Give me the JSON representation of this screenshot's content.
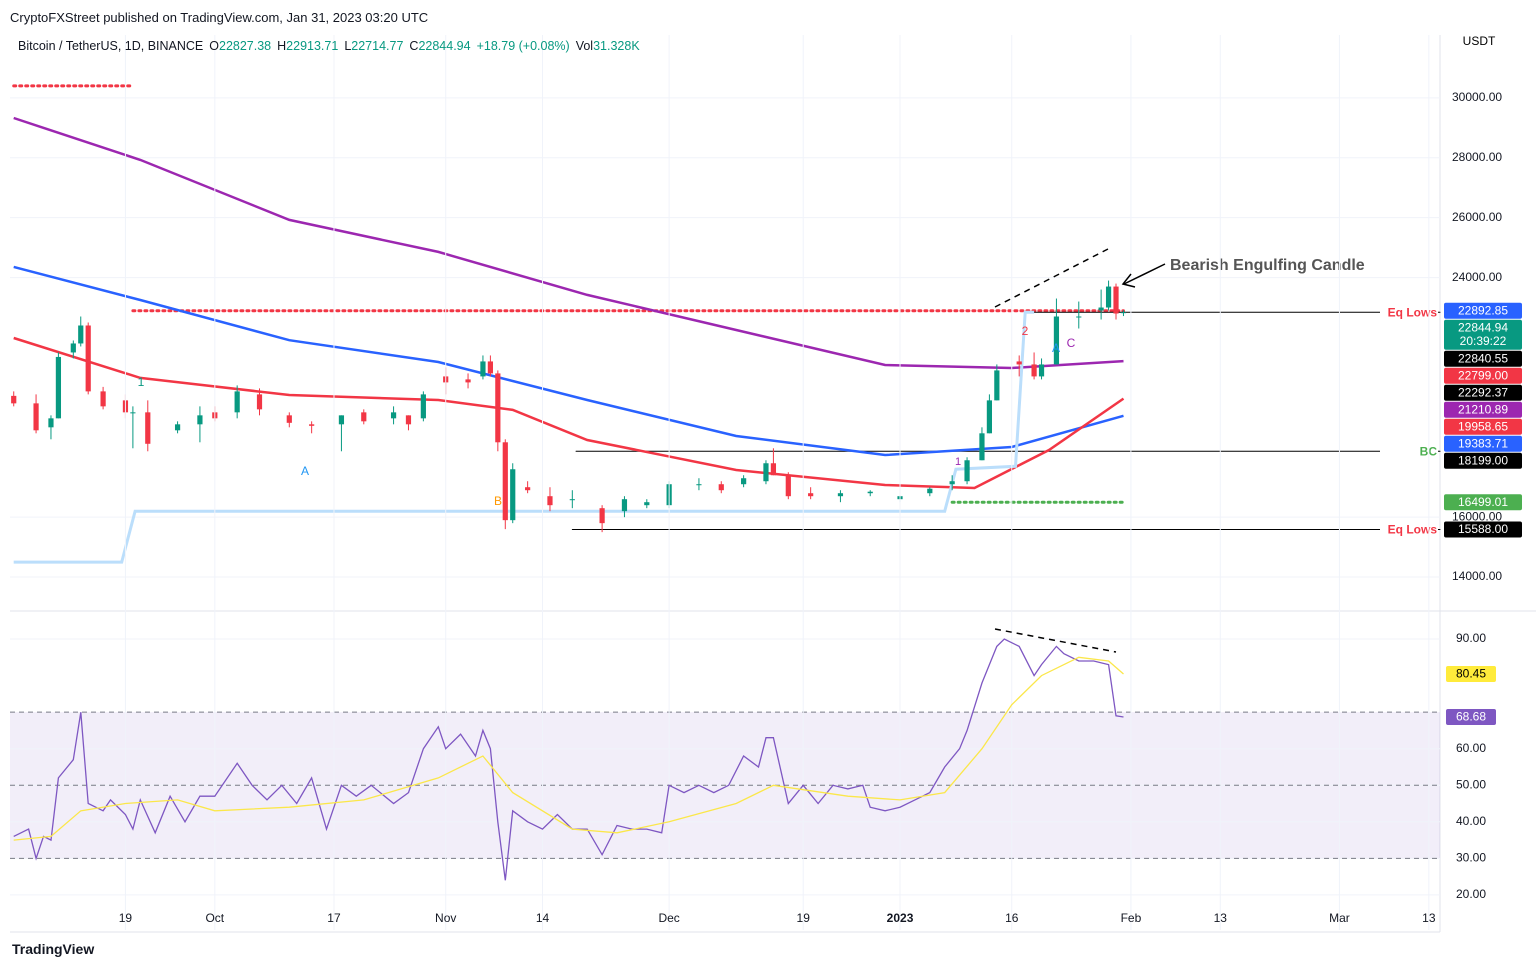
{
  "header": {
    "publisher": "CryptoFXStreet published on TradingView.com, Jan 31, 2023 03:20 UTC",
    "footer": "TradingView"
  },
  "chart_data": [
    {
      "type": "candlestick",
      "title": "Bitcoin / TetherUS, 1D, BINANCE",
      "unit": "USDT",
      "ohlc_labels": [
        "O",
        "H",
        "L",
        "C"
      ],
      "ohlc_values": [
        22827.38,
        22913.71,
        22714.77,
        22844.94
      ],
      "change": "+18.79 (+0.08%)",
      "volume_label": "Vol",
      "volume": "31.328K",
      "up_color": "#089981",
      "down_color": "#f23645",
      "x": [
        3,
        6,
        8,
        9,
        11,
        12,
        13,
        15,
        18,
        19,
        21,
        25,
        28,
        30,
        33,
        36,
        40,
        43,
        47,
        50,
        54,
        56,
        58,
        61,
        64,
        66,
        67,
        68,
        69,
        70,
        72,
        75,
        78,
        82,
        85,
        88,
        91,
        95,
        98,
        101,
        104,
        105,
        107,
        110,
        114,
        118,
        122,
        126,
        129,
        131,
        133,
        134,
        135,
        138,
        140,
        141,
        143,
        146,
        149,
        150,
        151,
        152
      ],
      "open": [
        20050,
        19800,
        19000,
        19300,
        21500,
        21800,
        22400,
        20200,
        19900,
        19500,
        19500,
        18900,
        19100,
        19500,
        19500,
        20100,
        19400,
        19100,
        19100,
        19500,
        19300,
        19400,
        19300,
        20700,
        20600,
        20700,
        21200,
        20800,
        18500,
        15900,
        17000,
        16700,
        16600,
        16300,
        16200,
        16400,
        16400,
        17100,
        17100,
        17100,
        17200,
        17800,
        17400,
        16800,
        16700,
        16800,
        16600,
        16800,
        17100,
        17200,
        17900,
        18800,
        19900,
        21200,
        21100,
        20700,
        21100,
        22700,
        22900,
        23000,
        23700,
        22827.38
      ],
      "high": [
        20200,
        20100,
        19400,
        21500,
        21900,
        22700,
        22500,
        20350,
        20100,
        19700,
        19900,
        19200,
        19700,
        19700,
        20400,
        20300,
        19500,
        19200,
        19400,
        19600,
        19700,
        19400,
        20200,
        21000,
        20800,
        21400,
        21400,
        20900,
        18600,
        17800,
        17200,
        17000,
        16900,
        16400,
        16700,
        16600,
        17200,
        17300,
        17200,
        17400,
        17900,
        18300,
        17500,
        17000,
        16900,
        16900,
        16750,
        17000,
        17400,
        18000,
        19000,
        20100,
        21100,
        21400,
        21500,
        21300,
        23300,
        23200,
        23600,
        23900,
        23800,
        22913.71
      ],
      "low": [
        19700,
        18800,
        18600,
        19300,
        21300,
        21700,
        20100,
        19600,
        19300,
        18300,
        18200,
        18800,
        18500,
        19200,
        19300,
        19400,
        19000,
        18800,
        18200,
        19100,
        19100,
        18900,
        19200,
        20100,
        20300,
        20600,
        20700,
        18200,
        15600,
        15800,
        16800,
        16200,
        16300,
        15500,
        16000,
        16300,
        16300,
        16900,
        16800,
        17000,
        17100,
        17400,
        16600,
        16600,
        16500,
        16700,
        16500,
        16700,
        16900,
        17100,
        17900,
        18800,
        19900,
        20700,
        20600,
        20600,
        21100,
        22300,
        22600,
        22900,
        22600,
        22714.77
      ],
      "close": [
        19800,
        18900,
        19300,
        21350,
        21800,
        22400,
        20200,
        19700,
        19500,
        19500,
        18450,
        19100,
        19400,
        19300,
        20200,
        19600,
        19150,
        19050,
        19400,
        19200,
        19500,
        19100,
        20100,
        20500,
        20500,
        21200,
        20800,
        18500,
        15900,
        17600,
        16900,
        16400,
        16600,
        15800,
        16600,
        16500,
        17100,
        17100,
        16900,
        17300,
        17800,
        17400,
        16700,
        16700,
        16800,
        16850,
        16700,
        16950,
        17200,
        17900,
        18800,
        19900,
        20900,
        21100,
        20700,
        21100,
        22700,
        22700,
        23000,
        23700,
        22800,
        22844.94
      ],
      "overlays": [
        {
          "color": "#9c27b0",
          "x": [
            3,
            20,
            40,
            60,
            80,
            100,
            120,
            137,
            152
          ],
          "values": [
            29330,
            27930,
            25925,
            24856,
            23420,
            22250,
            21082,
            20980,
            21210.89
          ]
        },
        {
          "color": "#2962ff",
          "x": [
            3,
            20,
            40,
            60,
            80,
            100,
            120,
            137,
            152
          ],
          "values": [
            24355,
            23250,
            21910,
            21180,
            19913,
            18710,
            18076,
            18343,
            19383.71
          ]
        },
        {
          "color": "#f23645",
          "x": [
            3,
            20,
            40,
            60,
            70,
            80,
            100,
            120,
            132,
            142,
            152
          ],
          "values": [
            21984,
            20650,
            20080,
            19913,
            19580,
            18577,
            17575,
            17075,
            16974,
            18243,
            19958.65
          ]
        },
        {
          "color": "#bbdefb",
          "x": [
            3,
            17.5,
            19.3,
            128,
            129.5,
            137.5,
            138.8,
            140
          ],
          "values": [
            14500,
            14500,
            16200,
            16200,
            17600,
            17700,
            22840,
            22840
          ]
        }
      ],
      "levels": [
        {
          "value": 30400,
          "from": 3,
          "to": 19,
          "color": "#f23645",
          "style": "dotted"
        },
        {
          "value": 22892.85,
          "from": 19,
          "to": 152,
          "color": "#f23645",
          "style": "dotted"
        },
        {
          "value": 16499.01,
          "from": 129,
          "to": 152,
          "color": "#4caf50",
          "style": "dotted"
        },
        {
          "value": 22840.55,
          "from": 139,
          "to": 194.5,
          "color": "#000000",
          "style": "solid"
        },
        {
          "value": 18199,
          "from": 78.5,
          "to": 194.5,
          "color": "#000000",
          "style": "solid"
        },
        {
          "value": 15588,
          "from": 78,
          "to": 194.5,
          "color": "#000000",
          "style": "solid"
        }
      ],
      "level_labels": [
        {
          "text": "Eq Lows",
          "color": "#f23645"
        },
        {
          "text": "BC",
          "color": "#4caf50"
        },
        {
          "text": "Eq Lows",
          "color": "#f23645"
        }
      ],
      "price_tags": [
        {
          "value": 22892.85,
          "label": "22892.85",
          "color": "#2962ff"
        },
        {
          "value": 22844.94,
          "label": "22844.94",
          "color": "#089981"
        },
        {
          "value": 22840.55,
          "label": "22840.55",
          "color": "#000000"
        },
        {
          "value": 22799,
          "label": "22799.00",
          "color": "#f23645"
        },
        {
          "value": 22292.37,
          "label": "22292.37",
          "color": "#000000"
        },
        {
          "value": 21210.89,
          "label": "21210.89",
          "color": "#9c27b0"
        },
        {
          "value": 19958.65,
          "label": "19958.65",
          "color": "#f23645"
        },
        {
          "value": 19383.71,
          "label": "19383.71",
          "color": "#2962ff"
        },
        {
          "value": 18199,
          "label": "18199.00",
          "color": "#000000"
        },
        {
          "value": 16499.01,
          "label": "16499.01",
          "color": "#4caf50"
        },
        {
          "value": 15588,
          "label": "15588.00",
          "color": "#000000"
        }
      ],
      "countdown": "20:39:22",
      "annotations": [
        {
          "text": "Bearish Engulfing Candle",
          "color": "#555555"
        },
        {
          "text": "1",
          "color": "#089981"
        },
        {
          "text": "A",
          "color": "#2196f3"
        },
        {
          "text": "B",
          "color": "#ff9800"
        },
        {
          "text": "1",
          "color": "#9c27b0"
        },
        {
          "text": "2",
          "color": "#f23645"
        },
        {
          "text": "A",
          "color": "#2196f3"
        },
        {
          "text": "C",
          "color": "#9c27b0"
        }
      ],
      "xlim": [
        2.5,
        194.5
      ],
      "ylim": [
        12900,
        32100
      ],
      "yticks": [
        {
          "value": 14000,
          "label": "14000.00"
        },
        {
          "value": 16000,
          "label": "16000.00"
        },
        {
          "value": 24000,
          "label": "24000.00"
        },
        {
          "value": 26000,
          "label": "26000.00"
        },
        {
          "value": 28000,
          "label": "28000.00"
        },
        {
          "value": 30000,
          "label": "30000.00"
        }
      ],
      "grid": true
    },
    {
      "type": "line",
      "name": "RSI",
      "series": [
        {
          "color": "#7e57c2",
          "x": [
            3,
            5,
            6,
            7,
            8,
            9,
            11,
            12,
            13,
            15,
            16,
            18,
            19,
            20,
            22,
            24,
            26,
            28,
            30,
            33,
            35,
            37,
            39,
            41,
            43,
            45,
            47,
            49,
            51,
            54,
            56,
            58,
            60,
            61,
            63,
            65,
            66,
            67,
            68,
            69,
            70,
            72,
            74,
            76,
            78,
            80,
            82,
            84,
            86,
            88,
            90,
            91,
            93,
            95,
            97,
            99,
            101,
            103,
            104,
            105,
            107,
            109,
            111,
            113,
            115,
            117,
            118,
            120,
            122,
            124,
            126,
            128,
            130,
            131,
            133,
            135,
            136,
            138,
            140,
            141,
            143,
            144,
            146,
            148,
            150,
            151,
            152
          ],
          "values": [
            36,
            38,
            30,
            36,
            35,
            52,
            57,
            70,
            45,
            43,
            46,
            42,
            38,
            46,
            37,
            47,
            40,
            47,
            47,
            56,
            50,
            46,
            50,
            45,
            52,
            38,
            50,
            47,
            50,
            45,
            48,
            60,
            66,
            60,
            64,
            58,
            65,
            60,
            40,
            24,
            43,
            40,
            38,
            42,
            38,
            38,
            31,
            39,
            38,
            38,
            37,
            50,
            48,
            50,
            48,
            50,
            58,
            55,
            63,
            63,
            45,
            50,
            45,
            50,
            49,
            50,
            44,
            43,
            44,
            46,
            48,
            55,
            60,
            65,
            78,
            88,
            90,
            88,
            80,
            83,
            88,
            86,
            84,
            84,
            83,
            69,
            68.68
          ]
        },
        {
          "color": "#fbe74a",
          "x": [
            3,
            8,
            12,
            18,
            25,
            30,
            40,
            50,
            60,
            66,
            70,
            78,
            84,
            91,
            100,
            105,
            115,
            122,
            128,
            133,
            137,
            141,
            146,
            150,
            152
          ],
          "values": [
            35,
            36,
            43,
            45,
            46,
            43,
            44,
            46,
            52,
            58,
            48,
            38,
            37,
            40,
            45,
            50,
            47,
            46,
            48,
            60,
            72,
            80,
            85,
            84,
            80.45
          ]
        }
      ],
      "tags": [
        {
          "value": 80.45,
          "label": "80.45",
          "color": "#ffeb3b",
          "text_color": "#000000"
        },
        {
          "value": 68.68,
          "label": "68.68",
          "color": "#7e57c2",
          "text_color": "#ffffff"
        }
      ],
      "band": [
        30,
        70
      ],
      "dashed_levels": [
        30,
        50,
        70
      ],
      "xlim": [
        2.5,
        194.5
      ],
      "ylim": [
        10.4,
        97.4
      ],
      "yticks": [
        {
          "value": 20,
          "label": "20.00"
        },
        {
          "value": 30,
          "label": "30.00"
        },
        {
          "value": 40,
          "label": "40.00"
        },
        {
          "value": 50,
          "label": "50.00"
        },
        {
          "value": 60,
          "label": "60.00"
        },
        {
          "value": 90,
          "label": "90.00"
        }
      ],
      "xticks": [
        {
          "value": 18,
          "label": "19"
        },
        {
          "value": 30,
          "label": "Oct"
        },
        {
          "value": 46,
          "label": "17"
        },
        {
          "value": 61,
          "label": "Nov"
        },
        {
          "value": 74,
          "label": "14"
        },
        {
          "value": 91,
          "label": "Dec"
        },
        {
          "value": 109,
          "label": "19"
        },
        {
          "value": 122,
          "label": "2023"
        },
        {
          "value": 137,
          "label": "16"
        },
        {
          "value": 153,
          "label": "Feb"
        },
        {
          "value": 165,
          "label": "13"
        },
        {
          "value": 181,
          "label": "Mar"
        },
        {
          "value": 193,
          "label": "13"
        }
      ],
      "grid": true
    }
  ]
}
